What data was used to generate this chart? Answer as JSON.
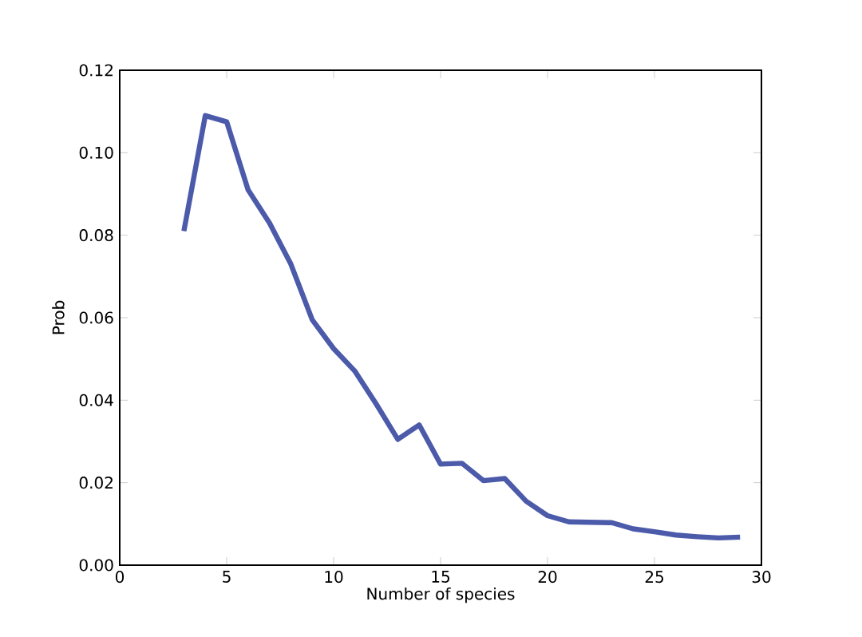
{
  "chart_data": {
    "type": "line",
    "xlabel": "Number of species",
    "ylabel": "Prob",
    "x": [
      3,
      4,
      5,
      6,
      7,
      8,
      9,
      10,
      11,
      12,
      13,
      14,
      15,
      16,
      17,
      18,
      19,
      20,
      21,
      22,
      23,
      24,
      25,
      26,
      27,
      28,
      29
    ],
    "series": [
      {
        "color": "#4c5aaa",
        "values": [
          0.081,
          0.109,
          0.1075,
          0.091,
          0.083,
          0.073,
          0.0595,
          0.0525,
          0.047,
          0.039,
          0.0305,
          0.034,
          0.0245,
          0.0247,
          0.0205,
          0.021,
          0.0155,
          0.012,
          0.0105,
          0.0104,
          0.0103,
          0.0088,
          0.0081,
          0.0073,
          0.0069,
          0.0066,
          0.0068
        ]
      }
    ],
    "xlim": [
      0,
      30
    ],
    "ylim": [
      0,
      0.12
    ],
    "xticks": [
      0,
      5,
      10,
      15,
      20,
      25,
      30
    ],
    "yticks": [
      {
        "value": 0,
        "label": "0.00"
      },
      {
        "value": 0.02,
        "label": "0.02"
      },
      {
        "value": 0.04,
        "label": "0.04"
      },
      {
        "value": 0.06,
        "label": "0.06"
      },
      {
        "value": 0.08,
        "label": "0.08"
      },
      {
        "value": 0.1,
        "label": "0.10"
      },
      {
        "value": 0.12,
        "label": "0.12"
      }
    ],
    "marker": "none",
    "line_style": "solid"
  }
}
